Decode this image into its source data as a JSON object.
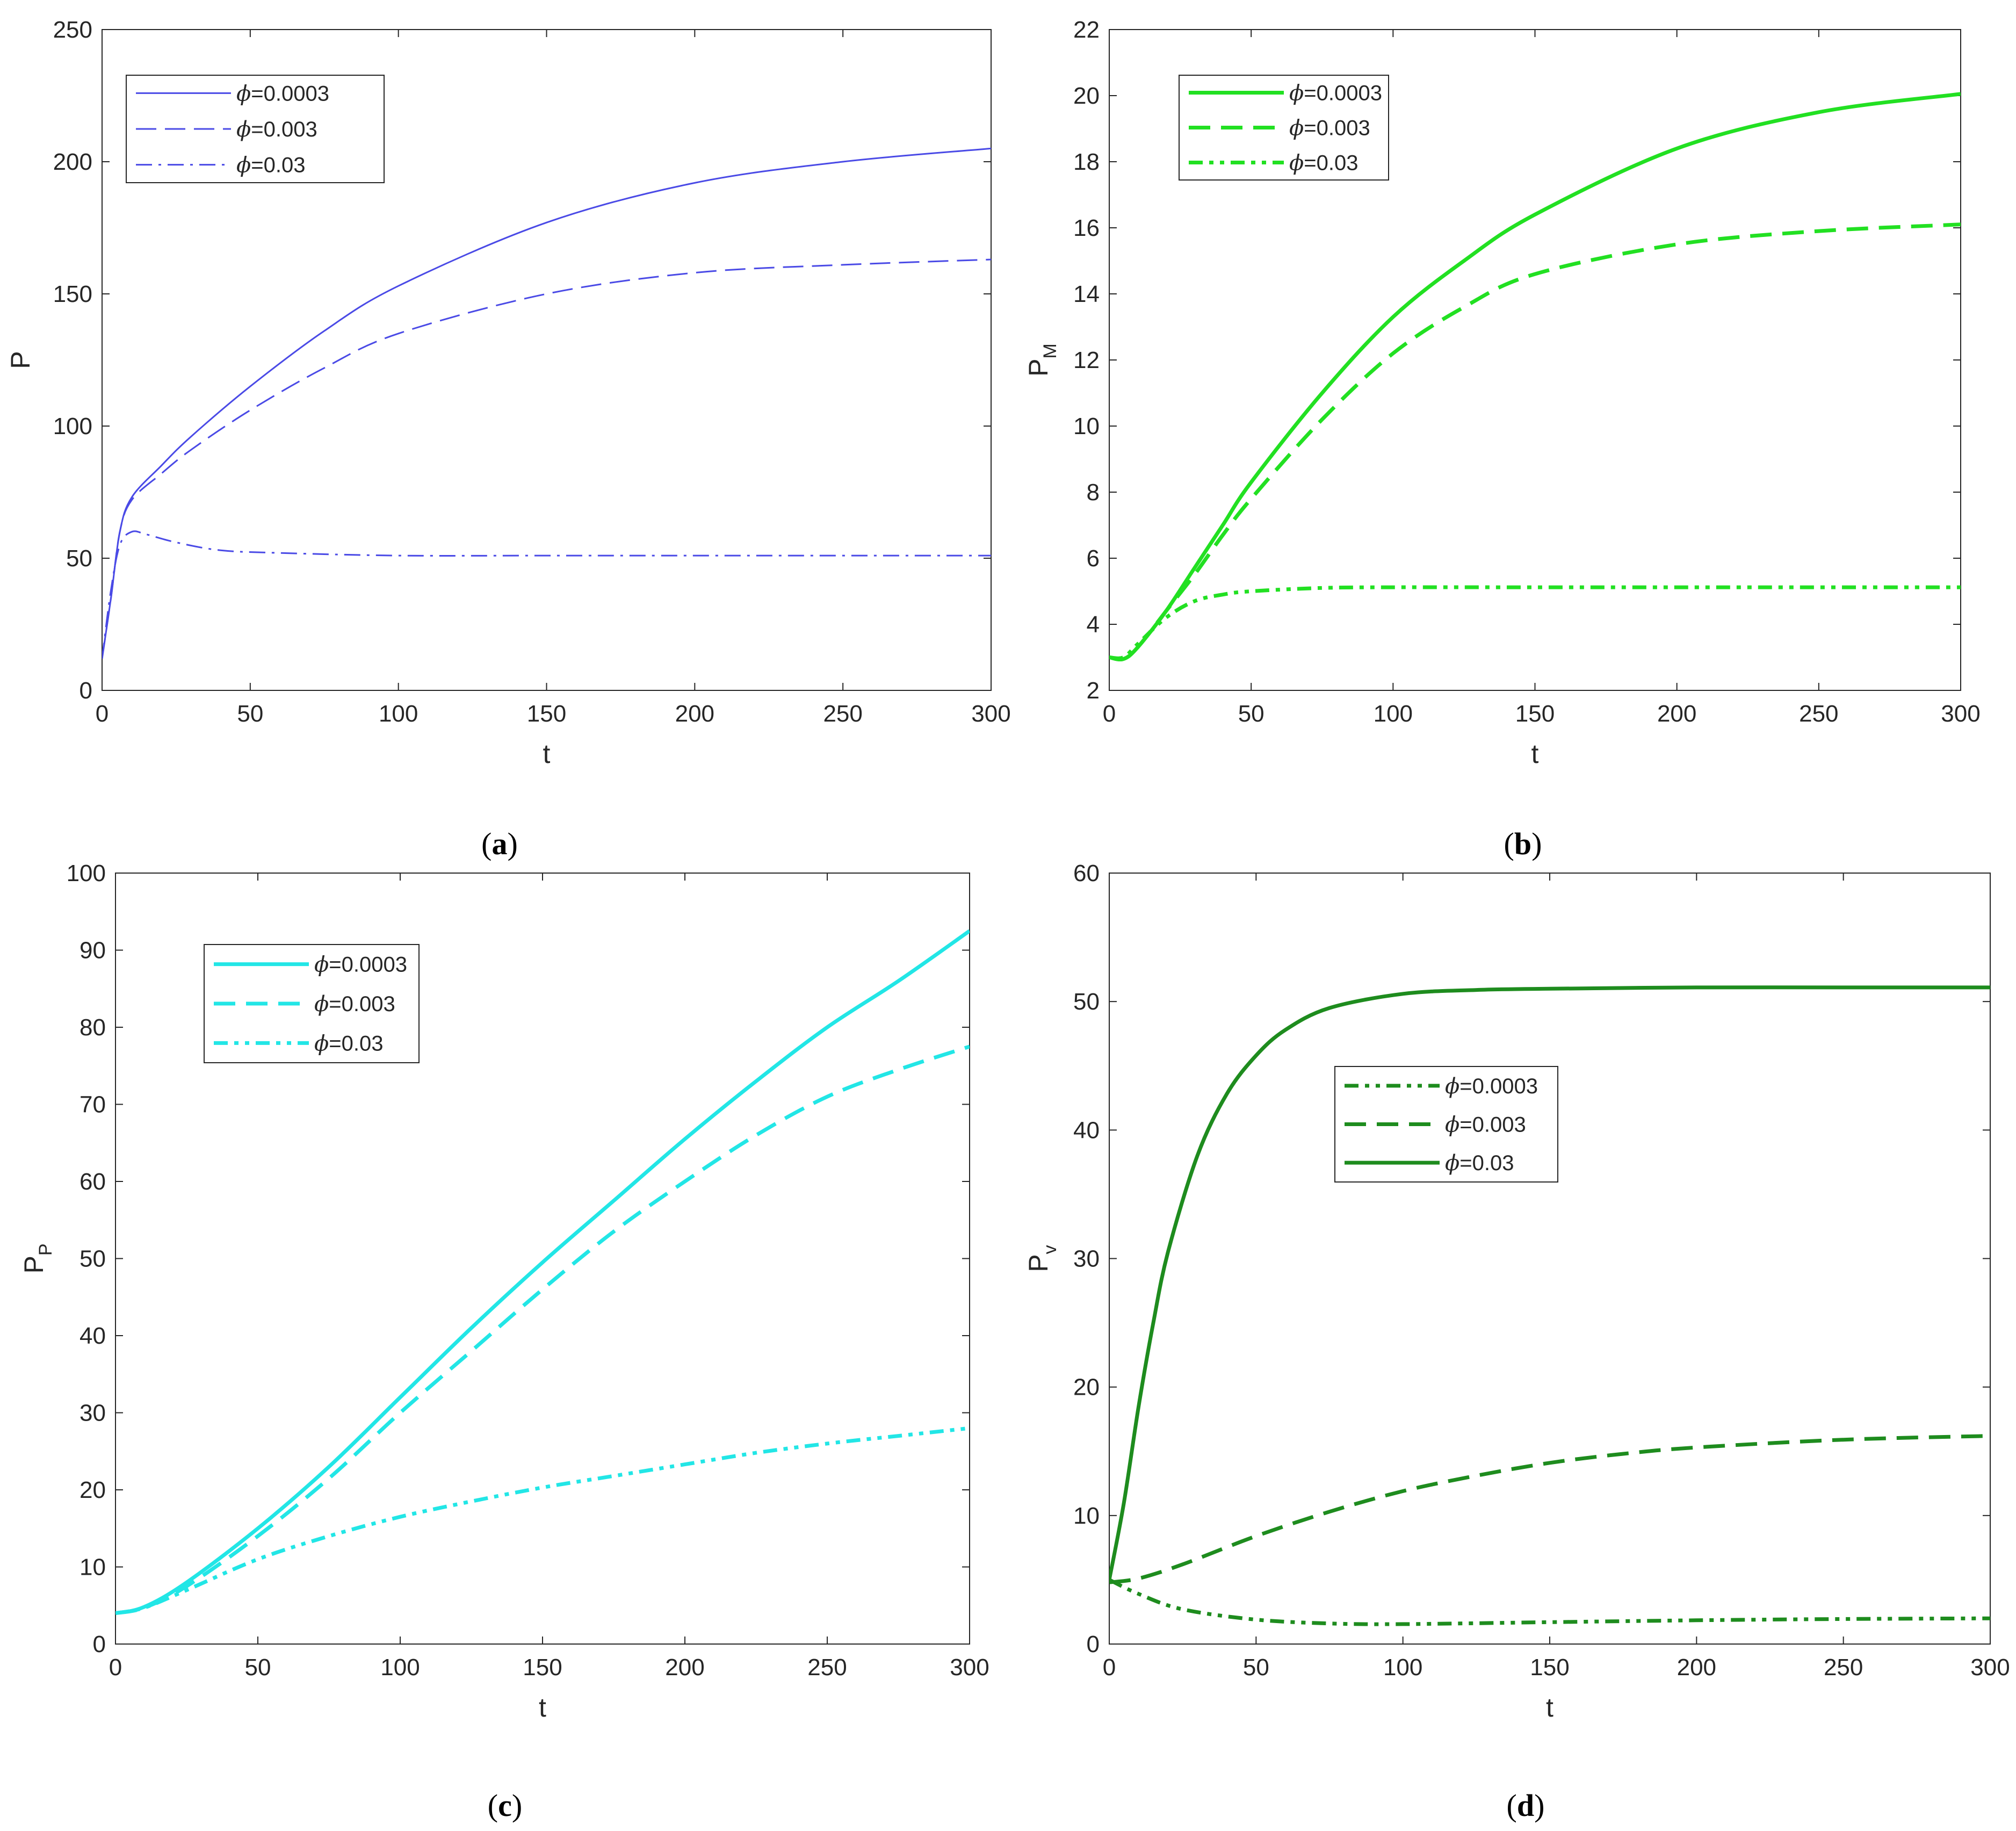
{
  "chart_data": [
    {
      "type": "line",
      "panel": "a",
      "caption": "(a)",
      "caption_open": "(",
      "caption_letter": "a",
      "caption_close": ")",
      "xlabel": "t",
      "ylabel": "P",
      "ylabel_sub": "",
      "xlim": [
        0,
        300
      ],
      "ylim": [
        0,
        250
      ],
      "xticks": [
        0,
        50,
        100,
        150,
        200,
        250,
        300
      ],
      "yticks": [
        0,
        50,
        100,
        150,
        200,
        250
      ],
      "legend_position": "top-left",
      "series": [
        {
          "name": "ϕ=0.0003",
          "label_symbol": "ϕ",
          "label_value": "=0.0003",
          "color": "#4a4ae6",
          "style": "solid",
          "weight": "thin",
          "points": [
            [
              0,
              12
            ],
            [
              3,
              35
            ],
            [
              6,
              60
            ],
            [
              10,
              73
            ],
            [
              20,
              85
            ],
            [
              30,
              96
            ],
            [
              50,
              115
            ],
            [
              75,
              136
            ],
            [
              100,
              153
            ],
            [
              150,
              177
            ],
            [
              200,
              192
            ],
            [
              250,
              200
            ],
            [
              300,
              205
            ]
          ]
        },
        {
          "name": "ϕ=0.003",
          "label_symbol": "ϕ",
          "label_value": "=0.003",
          "color": "#4a4ae6",
          "style": "dashed",
          "weight": "thin",
          "points": [
            [
              0,
              12
            ],
            [
              3,
              35
            ],
            [
              6,
              60
            ],
            [
              10,
              72
            ],
            [
              20,
              82
            ],
            [
              30,
              91
            ],
            [
              50,
              106
            ],
            [
              75,
              122
            ],
            [
              100,
              135
            ],
            [
              150,
              150
            ],
            [
              200,
              158
            ],
            [
              250,
              161
            ],
            [
              300,
              163
            ]
          ]
        },
        {
          "name": "ϕ=0.03",
          "label_symbol": "ϕ",
          "label_value": "=0.03",
          "color": "#4a4ae6",
          "style": "dashdot",
          "weight": "thin",
          "points": [
            [
              0,
              12
            ],
            [
              3,
              38
            ],
            [
              6,
              55
            ],
            [
              10,
              60
            ],
            [
              15,
              59
            ],
            [
              25,
              56
            ],
            [
              40,
              53
            ],
            [
              60,
              52
            ],
            [
              100,
              51
            ],
            [
              150,
              51
            ],
            [
              200,
              51
            ],
            [
              300,
              51
            ]
          ]
        }
      ]
    },
    {
      "type": "line",
      "panel": "b",
      "caption": "(b)",
      "caption_open": "(",
      "caption_letter": "b",
      "caption_close": ")",
      "xlabel": "t",
      "ylabel": "P",
      "ylabel_sub": "M",
      "xlim": [
        0,
        300
      ],
      "ylim": [
        2,
        22
      ],
      "xticks": [
        0,
        50,
        100,
        150,
        200,
        250,
        300
      ],
      "yticks": [
        2,
        4,
        6,
        8,
        10,
        12,
        14,
        16,
        18,
        20,
        22
      ],
      "legend_position": "top-left",
      "series": [
        {
          "name": "ϕ=0.0003",
          "label_symbol": "ϕ",
          "label_value": "=0.0003",
          "color": "#22e022",
          "style": "solid",
          "weight": "thick",
          "points": [
            [
              0,
              3.0
            ],
            [
              5,
              2.95
            ],
            [
              10,
              3.3
            ],
            [
              20,
              4.4
            ],
            [
              30,
              5.7
            ],
            [
              40,
              7.0
            ],
            [
              50,
              8.3
            ],
            [
              75,
              11.0
            ],
            [
              100,
              13.3
            ],
            [
              125,
              15.0
            ],
            [
              150,
              16.4
            ],
            [
              200,
              18.4
            ],
            [
              250,
              19.5
            ],
            [
              300,
              20.05
            ]
          ]
        },
        {
          "name": "ϕ=0.003",
          "label_symbol": "ϕ",
          "label_value": "=0.003",
          "color": "#22e022",
          "style": "dashed",
          "weight": "thick",
          "points": [
            [
              0,
              3.0
            ],
            [
              5,
              2.95
            ],
            [
              10,
              3.3
            ],
            [
              20,
              4.4
            ],
            [
              30,
              5.5
            ],
            [
              40,
              6.7
            ],
            [
              50,
              7.8
            ],
            [
              75,
              10.2
            ],
            [
              100,
              12.2
            ],
            [
              125,
              13.6
            ],
            [
              150,
              14.6
            ],
            [
              200,
              15.5
            ],
            [
              250,
              15.9
            ],
            [
              300,
              16.1
            ]
          ]
        },
        {
          "name": "ϕ=0.03",
          "label_symbol": "ϕ",
          "label_value": "=0.03",
          "color": "#22e022",
          "style": "dashdotdot",
          "weight": "thick",
          "points": [
            [
              0,
              3.0
            ],
            [
              5,
              3.0
            ],
            [
              10,
              3.4
            ],
            [
              20,
              4.2
            ],
            [
              30,
              4.7
            ],
            [
              40,
              4.9
            ],
            [
              50,
              5.0
            ],
            [
              75,
              5.1
            ],
            [
              100,
              5.12
            ],
            [
              150,
              5.12
            ],
            [
              200,
              5.12
            ],
            [
              300,
              5.12
            ]
          ]
        }
      ]
    },
    {
      "type": "line",
      "panel": "c",
      "caption": "(c)",
      "caption_open": "(",
      "caption_letter": "c",
      "caption_close": ")",
      "xlabel": "t",
      "ylabel": "P",
      "ylabel_sub": "P",
      "xlim": [
        0,
        300
      ],
      "ylim": [
        0,
        100
      ],
      "xticks": [
        0,
        50,
        100,
        150,
        200,
        250,
        300
      ],
      "yticks": [
        0,
        10,
        20,
        30,
        40,
        50,
        60,
        70,
        80,
        90,
        100
      ],
      "legend_position": "top-left",
      "series": [
        {
          "name": "ϕ=0.0003",
          "label_symbol": "ϕ",
          "label_value": "=0.0003",
          "color": "#22e6e6",
          "style": "solid",
          "weight": "thick",
          "points": [
            [
              0,
              4
            ],
            [
              10,
              4.8
            ],
            [
              25,
              8
            ],
            [
              50,
              15
            ],
            [
              75,
              23
            ],
            [
              100,
              32
            ],
            [
              125,
              41
            ],
            [
              150,
              49.5
            ],
            [
              175,
              57.5
            ],
            [
              200,
              65.5
            ],
            [
              225,
              73
            ],
            [
              250,
              80
            ],
            [
              275,
              86
            ],
            [
              300,
              92.5
            ]
          ]
        },
        {
          "name": "ϕ=0.003",
          "label_symbol": "ϕ",
          "label_value": "=0.003",
          "color": "#22e6e6",
          "style": "dashed",
          "weight": "thick",
          "points": [
            [
              0,
              4
            ],
            [
              10,
              4.7
            ],
            [
              25,
              7.5
            ],
            [
              50,
              14
            ],
            [
              75,
              21.5
            ],
            [
              100,
              30
            ],
            [
              125,
              38
            ],
            [
              150,
              46
            ],
            [
              175,
              53.5
            ],
            [
              200,
              60
            ],
            [
              225,
              66
            ],
            [
              250,
              71
            ],
            [
              275,
              74.5
            ],
            [
              300,
              77.5
            ]
          ]
        },
        {
          "name": "ϕ=0.03",
          "label_symbol": "ϕ",
          "label_value": "=0.03",
          "color": "#22e6e6",
          "style": "dashdotdot",
          "weight": "thick",
          "points": [
            [
              0,
              4
            ],
            [
              10,
              4.7
            ],
            [
              25,
              7
            ],
            [
              50,
              11
            ],
            [
              75,
              14
            ],
            [
              100,
              16.5
            ],
            [
              125,
              18.5
            ],
            [
              150,
              20.3
            ],
            [
              175,
              21.8
            ],
            [
              200,
              23.3
            ],
            [
              225,
              24.8
            ],
            [
              250,
              26
            ],
            [
              275,
              27
            ],
            [
              300,
              28
            ]
          ]
        }
      ]
    },
    {
      "type": "line",
      "panel": "d",
      "caption": "(d)",
      "caption_open": "(",
      "caption_letter": "d",
      "caption_close": ")",
      "xlabel": "t",
      "ylabel": "P",
      "ylabel_sub": "v",
      "xlim": [
        0,
        300
      ],
      "ylim": [
        0,
        60
      ],
      "xticks": [
        0,
        50,
        100,
        150,
        200,
        250,
        300
      ],
      "yticks": [
        0,
        10,
        20,
        30,
        40,
        50,
        60
      ],
      "legend_position": "center",
      "series": [
        {
          "name": "ϕ=0.0003",
          "label_symbol": "ϕ",
          "label_value": "=0.0003",
          "color": "#1e8c1e",
          "style": "dashdotdot",
          "weight": "thick",
          "points": [
            [
              0,
              5
            ],
            [
              10,
              3.9
            ],
            [
              25,
              2.7
            ],
            [
              50,
              1.9
            ],
            [
              75,
              1.6
            ],
            [
              100,
              1.55
            ],
            [
              150,
              1.7
            ],
            [
              200,
              1.85
            ],
            [
              250,
              1.95
            ],
            [
              300,
              2.0
            ]
          ]
        },
        {
          "name": "ϕ=0.003",
          "label_symbol": "ϕ",
          "label_value": "=0.003",
          "color": "#1e8c1e",
          "style": "dashed",
          "weight": "thick",
          "points": [
            [
              0,
              4.8
            ],
            [
              10,
              5.1
            ],
            [
              25,
              6.2
            ],
            [
              50,
              8.4
            ],
            [
              75,
              10.3
            ],
            [
              100,
              11.9
            ],
            [
              125,
              13.1
            ],
            [
              150,
              14.1
            ],
            [
              175,
              14.8
            ],
            [
              200,
              15.3
            ],
            [
              250,
              15.9
            ],
            [
              300,
              16.2
            ]
          ]
        },
        {
          "name": "ϕ=0.03",
          "label_symbol": "ϕ",
          "label_value": "=0.03",
          "color": "#1e8c1e",
          "style": "solid",
          "weight": "thick",
          "points": [
            [
              0,
              5
            ],
            [
              5,
              11
            ],
            [
              10,
              18.5
            ],
            [
              15,
              25
            ],
            [
              20,
              30.5
            ],
            [
              30,
              38
            ],
            [
              40,
              42.8
            ],
            [
              50,
              45.8
            ],
            [
              60,
              47.8
            ],
            [
              75,
              49.5
            ],
            [
              100,
              50.6
            ],
            [
              125,
              50.9
            ],
            [
              150,
              51.0
            ],
            [
              200,
              51.1
            ],
            [
              250,
              51.1
            ],
            [
              300,
              51.1
            ]
          ]
        }
      ]
    }
  ]
}
